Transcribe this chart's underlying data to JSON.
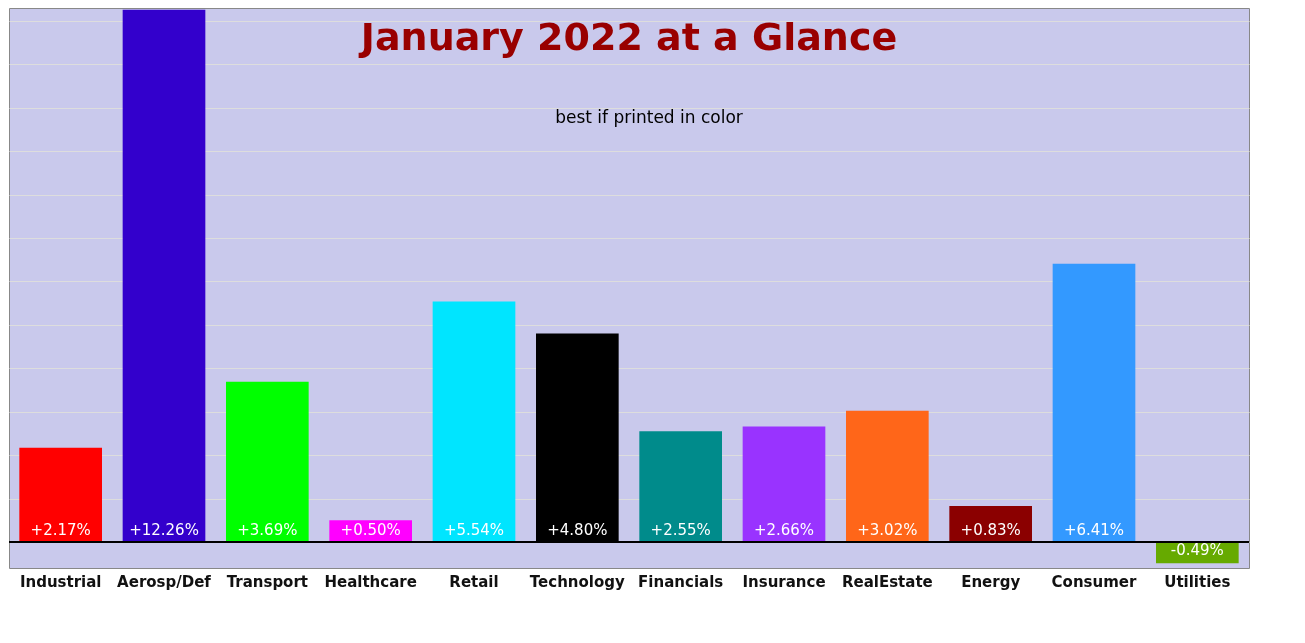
{
  "chart_data": {
    "type": "bar",
    "title": "January 2022 at a Glance",
    "annotations": [
      "best if printed in color"
    ],
    "categories": [
      "Industrial",
      "Aerosp/Def",
      "Transport",
      "Healthcare",
      "Retail",
      "Technology",
      "Financials",
      "Insurance",
      "RealEstate",
      "Energy",
      "Consumer",
      "Utilities"
    ],
    "values": [
      2.17,
      12.26,
      3.69,
      0.5,
      5.54,
      4.8,
      2.55,
      2.66,
      3.02,
      0.83,
      6.41,
      -0.49
    ],
    "value_labels": [
      "+2.17%",
      "+12.26%",
      "+3.69%",
      "+0.50%",
      "+5.54%",
      "+4.80%",
      "+2.55%",
      "+2.66%",
      "+3.02%",
      "+0.83%",
      "+6.41%",
      "-0.49%"
    ],
    "colors": [
      "#ff0000",
      "#3300cc",
      "#00ff00",
      "#ff00ff",
      "#00e5ff",
      "#000000",
      "#008b8b",
      "#9933ff",
      "#ff6619",
      "#8b0000",
      "#3399ff",
      "#66aa00"
    ],
    "relative": false,
    "ylim": [
      -0.6,
      12.3
    ],
    "yticks": [
      {
        "value": 0,
        "label": null
      },
      {
        "value": 1,
        "label": null
      },
      {
        "value": 2,
        "label": null
      },
      {
        "value": 3,
        "label": null
      },
      {
        "value": 4,
        "label": null
      },
      {
        "value": 5,
        "label": null
      },
      {
        "value": 6,
        "label": null
      },
      {
        "value": 7,
        "label": null
      },
      {
        "value": 8,
        "label": null
      },
      {
        "value": 9,
        "label": null
      },
      {
        "value": 10,
        "label": null
      },
      {
        "value": 11,
        "label": null
      },
      {
        "value": 12,
        "label": null
      }
    ],
    "grid": "y"
  }
}
